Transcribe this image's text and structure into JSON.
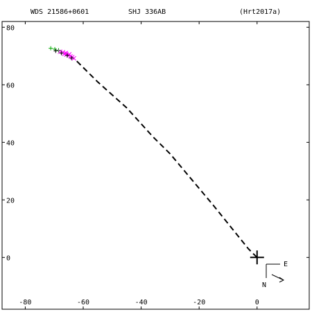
{
  "header": {
    "wds_id": "WDS 21586+0601",
    "discoverer": "SHJ 336AB",
    "reference": "(Hrt2017a)"
  },
  "orientation": {
    "east_label": "E",
    "north_label": "N"
  },
  "colors": {
    "axes": "#000000",
    "orbit": "#000000",
    "obs_green": "#00aa00",
    "obs_magenta": "#ff00ff",
    "obs_black": "#000000"
  },
  "chart_data": {
    "type": "scatter",
    "title": "",
    "xlabel": "",
    "ylabel": "",
    "xlim": [
      -88,
      18
    ],
    "ylim": [
      -18,
      82
    ],
    "x_ticks": [
      {
        "value": -80,
        "label": "-80"
      },
      {
        "value": -60,
        "label": "-60"
      },
      {
        "value": -40,
        "label": "-40"
      },
      {
        "value": -20,
        "label": "-20"
      },
      {
        "value": 0,
        "label": "0"
      }
    ],
    "y_ticks": [
      {
        "value": 0,
        "label": "0"
      },
      {
        "value": 20,
        "label": "20"
      },
      {
        "value": 40,
        "label": "40"
      },
      {
        "value": 60,
        "label": "60"
      },
      {
        "value": 80,
        "label": "80"
      }
    ],
    "primary_star": {
      "x": 0,
      "y": 0
    },
    "orbit_segment": [
      {
        "x": 0,
        "y": 0
      },
      {
        "x": -3,
        "y": 3
      },
      {
        "x": -15,
        "y": 18
      },
      {
        "x": -20,
        "y": 24
      },
      {
        "x": -30,
        "y": 36
      },
      {
        "x": -36,
        "y": 42
      },
      {
        "x": -45,
        "y": 52
      },
      {
        "x": -55,
        "y": 61
      },
      {
        "x": -63,
        "y": 69
      }
    ],
    "series": [
      {
        "marker": "plus",
        "color": "#00aa00",
        "points": [
          {
            "x": -71.2,
            "y": 72.7
          },
          {
            "x": -69.8,
            "y": 72.4
          },
          {
            "x": -68.5,
            "y": 72.0
          }
        ]
      },
      {
        "marker": "cross",
        "color": "#ff00ff",
        "points": [
          {
            "x": -68.0,
            "y": 71.5
          },
          {
            "x": -67.0,
            "y": 71.3
          },
          {
            "x": -66.5,
            "y": 70.8
          },
          {
            "x": -65.8,
            "y": 70.5
          },
          {
            "x": -65.0,
            "y": 70.3
          },
          {
            "x": -64.4,
            "y": 69.9
          },
          {
            "x": -63.8,
            "y": 69.6
          },
          {
            "x": -63.2,
            "y": 69.2
          },
          {
            "x": -66.0,
            "y": 71.0
          },
          {
            "x": -64.8,
            "y": 70.6
          }
        ]
      },
      {
        "marker": "plus",
        "color": "#000000",
        "points": [
          {
            "x": -69.5,
            "y": 71.8
          },
          {
            "x": -67.5,
            "y": 71.0
          },
          {
            "x": -65.5,
            "y": 70.2
          },
          {
            "x": -64.0,
            "y": 69.3
          }
        ]
      }
    ]
  }
}
